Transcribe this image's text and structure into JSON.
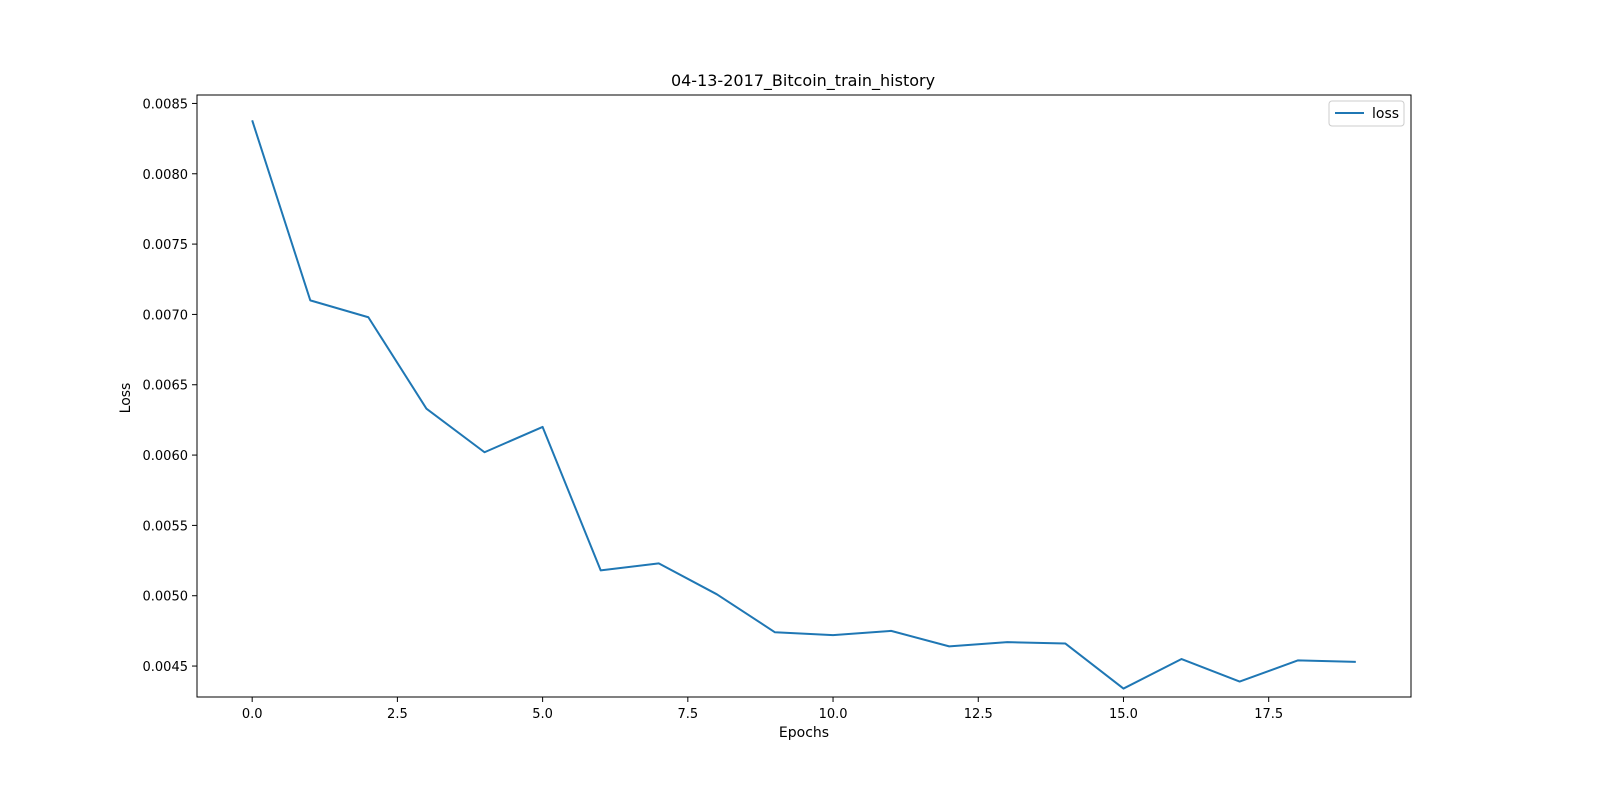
{
  "chart_data": {
    "type": "line",
    "title": "04-13-2017_Bitcoin_train_history",
    "xlabel": "Epochs",
    "ylabel": "Loss",
    "xlim": [
      -0.95,
      19.95
    ],
    "ylim": [
      0.00428,
      0.00856
    ],
    "x_ticks": [
      0.0,
      2.5,
      5.0,
      7.5,
      10.0,
      12.5,
      15.0,
      17.5
    ],
    "x_tick_labels": [
      "0.0",
      "2.5",
      "5.0",
      "7.5",
      "10.0",
      "12.5",
      "15.0",
      "17.5"
    ],
    "y_ticks": [
      0.0045,
      0.005,
      0.0055,
      0.006,
      0.0065,
      0.007,
      0.0075,
      0.008,
      0.0085
    ],
    "y_tick_labels": [
      "0.0045",
      "0.0050",
      "0.0055",
      "0.0060",
      "0.0065",
      "0.0070",
      "0.0075",
      "0.0080",
      "0.0085"
    ],
    "grid": false,
    "legend_position": "top-right",
    "series": [
      {
        "name": "loss",
        "color": "#1f77b4",
        "x": [
          0,
          1,
          2,
          3,
          4,
          5,
          6,
          7,
          8,
          9,
          10,
          11,
          12,
          13,
          14,
          15,
          16,
          17,
          18,
          19
        ],
        "y": [
          0.00838,
          0.0071,
          0.00698,
          0.00633,
          0.00602,
          0.0062,
          0.00518,
          0.00523,
          0.00501,
          0.00474,
          0.00472,
          0.00475,
          0.00464,
          0.00467,
          0.00466,
          0.00434,
          0.00455,
          0.00439,
          0.00454,
          0.00453
        ]
      }
    ]
  }
}
